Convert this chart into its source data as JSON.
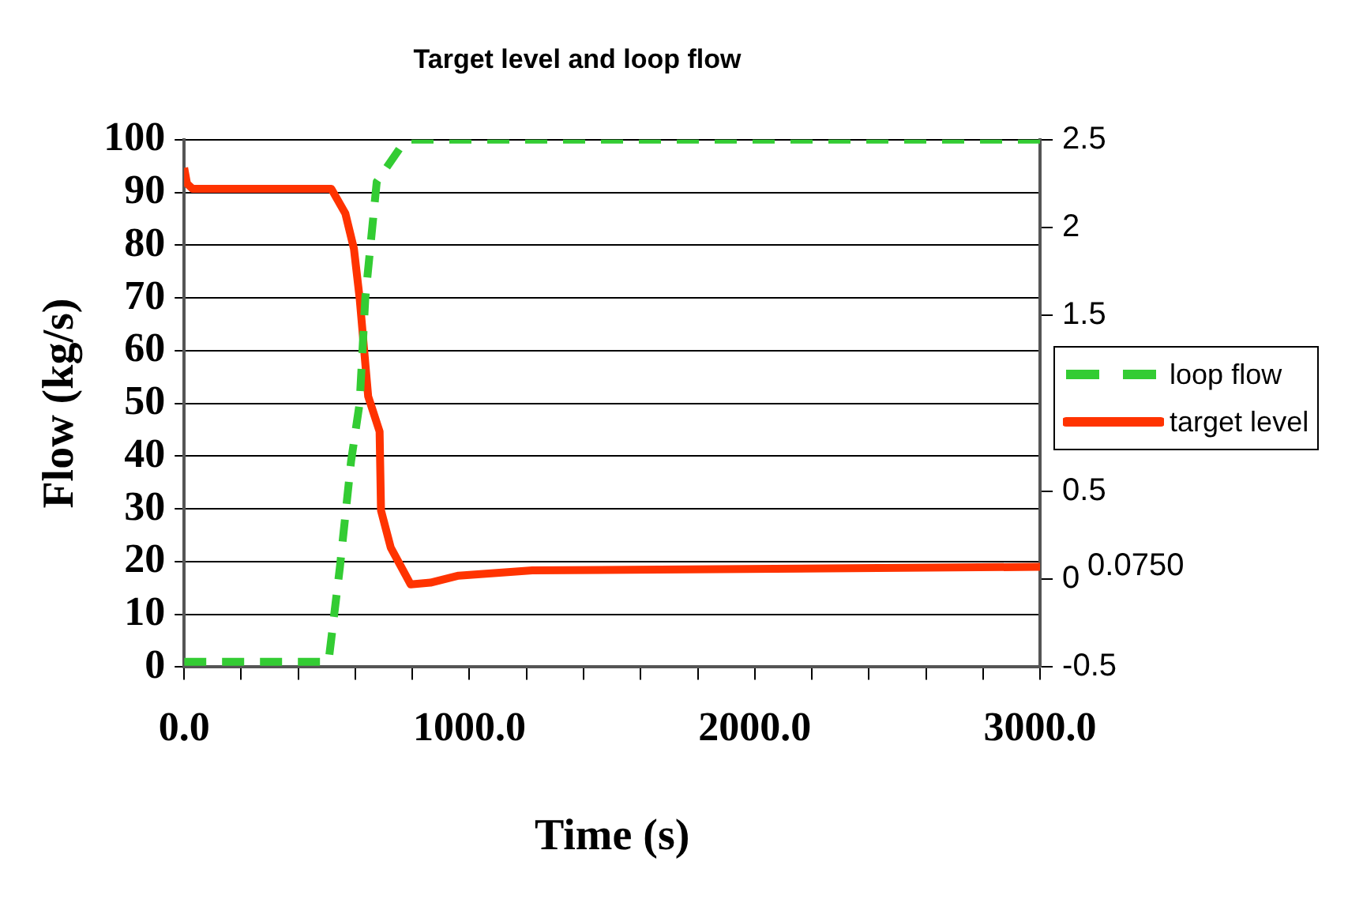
{
  "chart_data": {
    "type": "line",
    "title": "Target level and loop flow",
    "xlabel": "Time (s)",
    "ylabel": "Flow (kg/s)",
    "xlim": [
      0,
      3000
    ],
    "xticks": [
      {
        "value": 0,
        "label": "0.0"
      },
      {
        "value": 200,
        "label": null
      },
      {
        "value": 400,
        "label": null
      },
      {
        "value": 600,
        "label": null
      },
      {
        "value": 800,
        "label": null
      },
      {
        "value": 1000,
        "label": "1000.0"
      },
      {
        "value": 1200,
        "label": null
      },
      {
        "value": 1400,
        "label": null
      },
      {
        "value": 1600,
        "label": null
      },
      {
        "value": 1800,
        "label": null
      },
      {
        "value": 2000,
        "label": "2000.0"
      },
      {
        "value": 2200,
        "label": null
      },
      {
        "value": 2400,
        "label": null
      },
      {
        "value": 2600,
        "label": null
      },
      {
        "value": 2800,
        "label": null
      },
      {
        "value": 3000,
        "label": "3000.0"
      }
    ],
    "ylim": [
      0,
      100
    ],
    "yticks": [
      0,
      10,
      20,
      30,
      40,
      50,
      60,
      70,
      80,
      90,
      100
    ],
    "y2lim": [
      -0.5,
      2.5
    ],
    "y2ticks": [
      -0.5,
      0,
      0.5,
      1.5,
      2,
      2.5
    ],
    "grid": "y",
    "legend": "right",
    "marker": "none",
    "annotations": [
      "0.0750"
    ],
    "series": [
      {
        "name": "loop flow",
        "color": "#33cc33",
        "line_style": "dashed",
        "x": [
          0,
          506,
          546,
          585,
          615,
          635,
          675,
          764,
          794,
          3000
        ],
        "values": [
          1,
          1,
          19,
          39,
          50,
          70,
          92,
          99,
          100,
          100
        ]
      },
      {
        "name": "target level",
        "color": "#ff3300",
        "line_style": "solid",
        "axis": "y2",
        "x": [
          0,
          10,
          30,
          516,
          565,
          595,
          615,
          645,
          685,
          690,
          724,
          794,
          863,
          962,
          1220,
          3000
        ],
        "values": [
          2.34,
          2.25,
          2.22,
          2.22,
          2.08,
          1.88,
          1.6,
          1.04,
          0.84,
          0.39,
          0.18,
          -0.03,
          -0.02,
          0.02,
          0.05,
          0.07
        ]
      }
    ]
  }
}
